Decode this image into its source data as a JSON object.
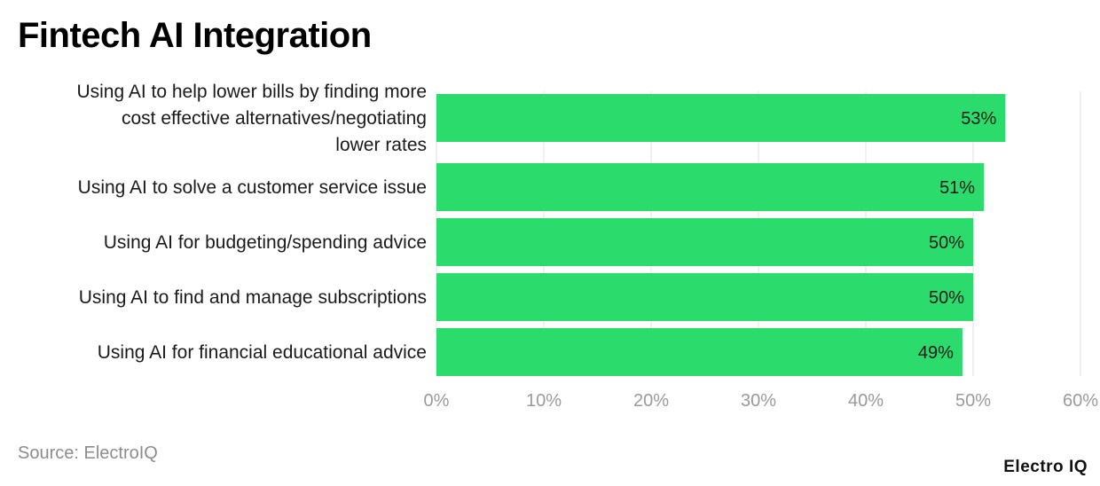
{
  "header": {
    "title": "Fintech AI Integration"
  },
  "footer": {
    "source": "Source: ElectroIQ",
    "brand": "Electro IQ"
  },
  "colors": {
    "bar": "#2bdb6c",
    "grid": "#e0e0e0",
    "tick": "#9a9a9a",
    "label": "#1a1a1a"
  },
  "chart_data": {
    "type": "bar",
    "orientation": "horizontal",
    "categories": [
      [
        "Using AI to help lower bills by finding more",
        "cost effective alternatives/negotiating",
        "lower rates"
      ],
      [
        "Using AI to solve a customer service issue"
      ],
      [
        "Using AI for budgeting/spending advice"
      ],
      [
        "Using AI to find and manage subscriptions"
      ],
      [
        "Using AI for financial educational advice"
      ]
    ],
    "values": [
      53,
      51,
      50,
      50,
      49
    ],
    "data_labels": [
      "53%",
      "51%",
      "50%",
      "50%",
      "49%"
    ],
    "xlim": [
      0,
      60
    ],
    "xticks": [
      0,
      10,
      20,
      30,
      40,
      50,
      60
    ],
    "xtick_labels": [
      "0%",
      "10%",
      "20%",
      "30%",
      "40%",
      "50%",
      "60%"
    ],
    "grid": true,
    "legend": "none"
  }
}
